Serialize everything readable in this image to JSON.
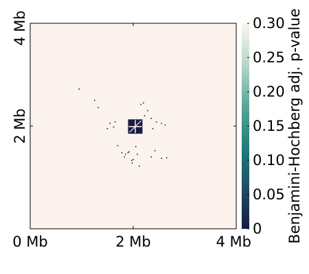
{
  "chart_data": {
    "type": "heatmap",
    "title": "",
    "xlabel": "",
    "ylabel": "",
    "x_ticks": [
      {
        "value": 0,
        "label": "0 Mb"
      },
      {
        "value": 2,
        "label": "2 Mb"
      },
      {
        "value": 4,
        "label": "4 Mb"
      }
    ],
    "y_ticks": [
      {
        "value": 2,
        "label": "2 Mb"
      },
      {
        "value": 4,
        "label": "4 Mb"
      }
    ],
    "xlim": [
      0,
      4
    ],
    "ylim": [
      0,
      4
    ],
    "background_color": "#fdf3ee",
    "colorbar": {
      "label": "Benjamini-Hochberg adj. p-value",
      "range": [
        0,
        0.3
      ],
      "ticks": [
        {
          "value": 0,
          "label": "0"
        },
        {
          "value": 0.05,
          "label": "0.05"
        },
        {
          "value": 0.1,
          "label": "0.10"
        },
        {
          "value": 0.15,
          "label": "0.15"
        },
        {
          "value": 0.2,
          "label": "0.20"
        },
        {
          "value": 0.25,
          "label": "0.25"
        },
        {
          "value": 0.3,
          "label": "0.30"
        }
      ],
      "colors": [
        "#161d3f",
        "#1d4f63",
        "#227e7a",
        "#5aa898",
        "#b6d7c8",
        "#fbf6ee"
      ]
    },
    "cluster": {
      "x": [
        1.9,
        2.18
      ],
      "y": [
        1.85,
        2.13
      ],
      "value": 0
    },
    "significant_points": [
      {
        "x": 0.95,
        "y": 2.72
      },
      {
        "x": 1.32,
        "y": 2.36
      },
      {
        "x": 1.25,
        "y": 2.5
      },
      {
        "x": 1.55,
        "y": 2.05
      },
      {
        "x": 1.62,
        "y": 1.98
      },
      {
        "x": 1.5,
        "y": 1.95
      },
      {
        "x": 1.7,
        "y": 1.62
      },
      {
        "x": 1.78,
        "y": 1.48
      },
      {
        "x": 1.85,
        "y": 1.45
      },
      {
        "x": 1.83,
        "y": 1.4
      },
      {
        "x": 1.9,
        "y": 1.48
      },
      {
        "x": 1.92,
        "y": 1.5
      },
      {
        "x": 2.0,
        "y": 1.35
      },
      {
        "x": 1.97,
        "y": 1.33
      },
      {
        "x": 2.08,
        "y": 1.45
      },
      {
        "x": 2.05,
        "y": 1.6
      },
      {
        "x": 2.15,
        "y": 2.42
      },
      {
        "x": 2.2,
        "y": 2.45
      },
      {
        "x": 2.22,
        "y": 2.2
      },
      {
        "x": 2.28,
        "y": 2.3
      },
      {
        "x": 2.35,
        "y": 2.15
      },
      {
        "x": 2.38,
        "y": 1.95
      },
      {
        "x": 2.45,
        "y": 2.08
      },
      {
        "x": 2.55,
        "y": 2.05
      },
      {
        "x": 2.62,
        "y": 2.02
      },
      {
        "x": 2.65,
        "y": 1.38
      },
      {
        "x": 2.55,
        "y": 1.37
      },
      {
        "x": 2.35,
        "y": 1.4
      },
      {
        "x": 2.42,
        "y": 1.52
      },
      {
        "x": 1.65,
        "y": 2.08
      },
      {
        "x": 2.12,
        "y": 1.22
      },
      {
        "x": 1.98,
        "y": 1.28
      }
    ]
  }
}
